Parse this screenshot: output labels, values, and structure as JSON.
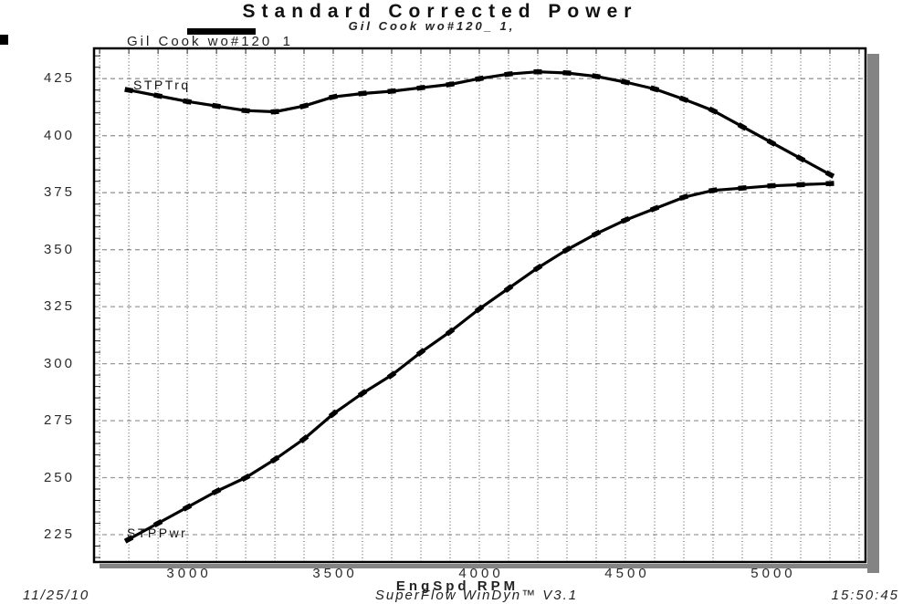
{
  "header": {
    "title": "Standard Corrected Power",
    "subtitle": "Gil Cook wo#120_ 1,"
  },
  "legend": {
    "swatch_color": "#000000",
    "label": "Gil Cook wo#120_1"
  },
  "footer": {
    "date": "11/25/10",
    "software": "SuperFlow WinDyn™ V3.1",
    "time": "15:50:45"
  },
  "chart_data": {
    "type": "line",
    "title": "Standard Corrected Power",
    "subtitle": "Gil Cook wo#120_ 1,",
    "xlabel": "EngSpd RPM",
    "ylabel": "",
    "xlim": [
      2681,
      5322
    ],
    "ylim": [
      213,
      438.3
    ],
    "x_major_ticks": [
      3000,
      3500,
      4000,
      4500,
      5000
    ],
    "x_minor_step": 100,
    "x_grid_range": [
      2700,
      5300
    ],
    "y_major_ticks": [
      225,
      250,
      275,
      300,
      325,
      350,
      375,
      400,
      425
    ],
    "y_minor_step": 5,
    "grid": "vertical dotted lines every 100 RPM; horizontal gray dashed lines at 25-unit majors; minor ticks every 5 units on left axis",
    "legend_position": "top-left above plot",
    "line_color": "#000000",
    "x": [
      2800,
      2900,
      3000,
      3100,
      3200,
      3300,
      3400,
      3500,
      3600,
      3700,
      3800,
      3900,
      4000,
      4100,
      4200,
      4300,
      4400,
      4500,
      4600,
      4700,
      4800,
      4900,
      5000,
      5100,
      5200
    ],
    "series": [
      {
        "name": "STPTrq",
        "values": [
          420,
          417.5,
          415,
          413,
          411,
          410.5,
          413,
          417,
          418.5,
          419.5,
          421,
          422.5,
          425,
          427,
          428,
          427.5,
          426,
          423.5,
          420.5,
          416,
          411,
          404,
          397,
          390,
          383
        ]
      },
      {
        "name": "STPPwr",
        "values": [
          223,
          230,
          237,
          244,
          250,
          258,
          267,
          278,
          287,
          295,
          305,
          314,
          324,
          333,
          342,
          350,
          357,
          363,
          368,
          373,
          376,
          377,
          378,
          378.5,
          379
        ]
      }
    ]
  }
}
